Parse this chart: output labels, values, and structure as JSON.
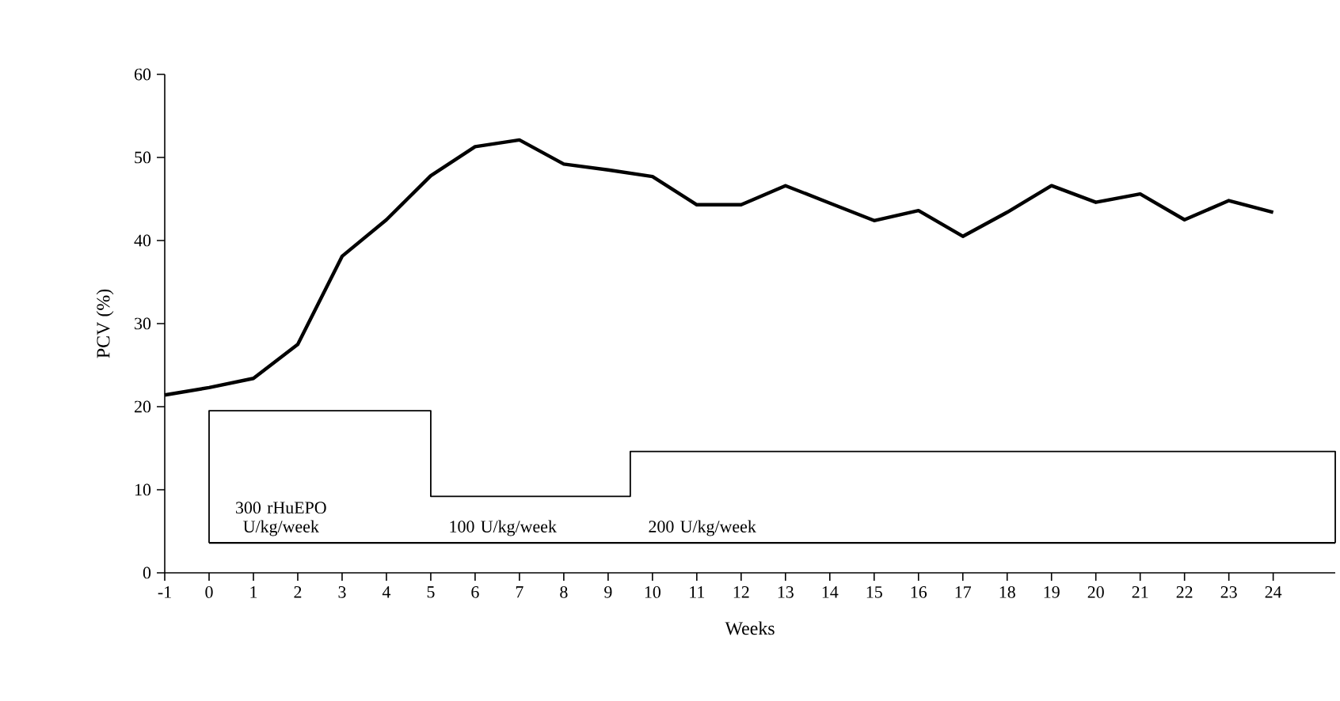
{
  "chart_data": {
    "type": "line",
    "xlabel": "Weeks",
    "ylabel": "PCV (%)",
    "xlim": [
      -1,
      25.4
    ],
    "xticks": [
      -1,
      0,
      1,
      2,
      3,
      4,
      5,
      6,
      7,
      8,
      9,
      10,
      11,
      12,
      13,
      14,
      15,
      16,
      17,
      18,
      19,
      20,
      21,
      22,
      23,
      24
    ],
    "ylim": [
      0,
      60
    ],
    "yticks": [
      0,
      10,
      20,
      30,
      40,
      50,
      60
    ],
    "grid": false,
    "series": [
      {
        "color": "#000000",
        "x": [
          -1,
          0,
          1,
          2,
          3,
          4,
          5,
          6,
          7,
          8,
          9,
          10,
          11,
          12,
          13,
          14,
          15,
          16,
          17,
          18,
          19,
          20,
          21,
          22,
          23,
          24
        ],
        "values": [
          21.4,
          22.3,
          23.4,
          27.5,
          38.1,
          42.5,
          47.8,
          51.3,
          52.1,
          49.2,
          48.5,
          47.7,
          44.3,
          44.3,
          46.6,
          44.5,
          42.4,
          43.6,
          40.5,
          43.4,
          46.6,
          44.6,
          45.6,
          42.5,
          44.8,
          43.4
        ]
      },
      {
        "type": "step",
        "color": "#000000",
        "x": [
          0,
          0,
          5,
          9.5,
          25.4,
          25.4
        ],
        "values": [
          3.6,
          19.5,
          9.2,
          14.6,
          14.6,
          3.6
        ]
      },
      {
        "type": "line",
        "color": "#000000",
        "x": [
          0,
          25.4
        ],
        "values": [
          3.6,
          3.6
        ]
      }
    ],
    "annotations": [
      "300 rHuEPO U/kg/week",
      "100 U/kg/week",
      "200 U/kg/week"
    ]
  }
}
